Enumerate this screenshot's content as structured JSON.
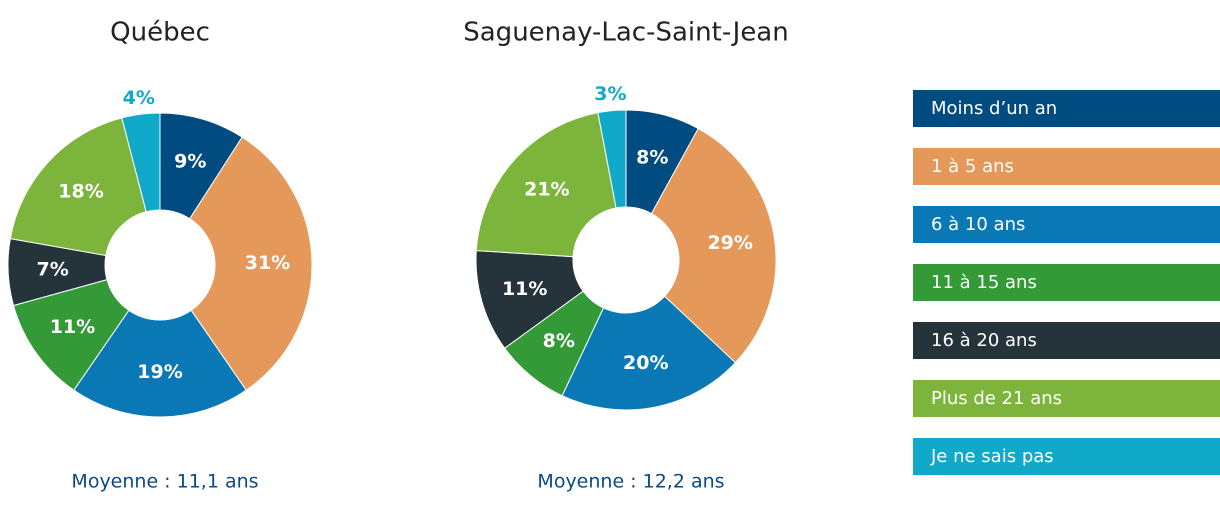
{
  "chart_data": [
    {
      "type": "pie",
      "title": "Québec",
      "values": [
        9,
        31,
        19,
        11,
        7,
        18,
        4
      ],
      "value_labels": [
        "9%",
        "31%",
        "19%",
        "11%",
        "7%",
        "18%",
        "4%"
      ],
      "annotation": "Moyenne : 11,1 ans"
    },
    {
      "type": "pie",
      "title": "Saguenay-Lac-Saint-Jean",
      "values": [
        8,
        29,
        20,
        8,
        11,
        21,
        3
      ],
      "value_labels": [
        "8%",
        "29%",
        "20%",
        "8%",
        "11%",
        "21%",
        "3%"
      ],
      "annotation": "Moyenne : 12,2 ans"
    }
  ],
  "legend": {
    "categories": [
      "Moins d’un an",
      "1 à 5 ans",
      "6 à 10 ans",
      "11 à 15 ans",
      "16 à 20 ans",
      "Plus de 21 ans",
      "Je ne sais pas"
    ],
    "colors": [
      "#004b80",
      "#e4985a",
      "#0a78b5",
      "#339a37",
      "#25333b",
      "#7db53c",
      "#11a9c9"
    ]
  }
}
